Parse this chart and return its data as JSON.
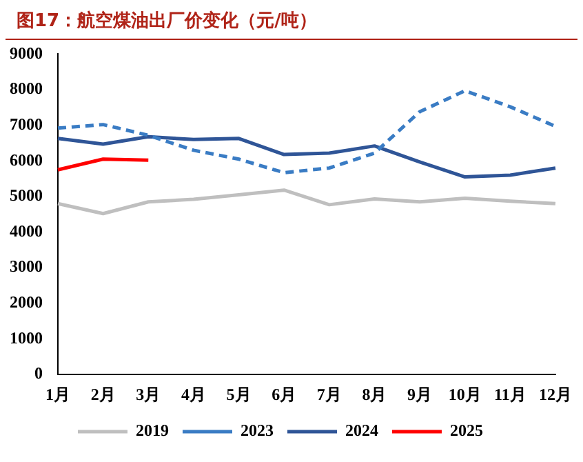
{
  "chart_data": {
    "type": "line",
    "title": "图17：航空煤油出厂价变化（元/吨）",
    "categories": [
      "1月",
      "2月",
      "3月",
      "4月",
      "5月",
      "6月",
      "7月",
      "8月",
      "9月",
      "10月",
      "11月",
      "12月"
    ],
    "series": [
      {
        "name": "2019",
        "color": "#bfbfbf",
        "values": [
          4800,
          4520,
          4850,
          4920,
          5050,
          5180,
          4770,
          4930,
          4850,
          4950,
          4870,
          4800
        ]
      },
      {
        "name": "2023",
        "color": "#3a7cc4",
        "line_style": "dashed",
        "values": [
          6920,
          7020,
          6720,
          6300,
          6050,
          5670,
          5800,
          6220,
          7380,
          7970,
          7520,
          6970
        ]
      },
      {
        "name": "2024",
        "color": "#2f5597",
        "values": [
          6630,
          6470,
          6680,
          6600,
          6630,
          6180,
          6220,
          6420,
          5970,
          5550,
          5600,
          5800
        ]
      },
      {
        "name": "2025",
        "color": "#ff0000",
        "values": [
          5750,
          6050,
          6020,
          null,
          null,
          null,
          null,
          null,
          null,
          null,
          null,
          null
        ]
      }
    ],
    "ylim": [
      0,
      9000
    ],
    "yticks": [
      0,
      1000,
      2000,
      3000,
      4000,
      5000,
      6000,
      7000,
      8000,
      9000
    ],
    "grid": false,
    "legend": "bottom",
    "marker": "none",
    "line_style": "solid"
  }
}
